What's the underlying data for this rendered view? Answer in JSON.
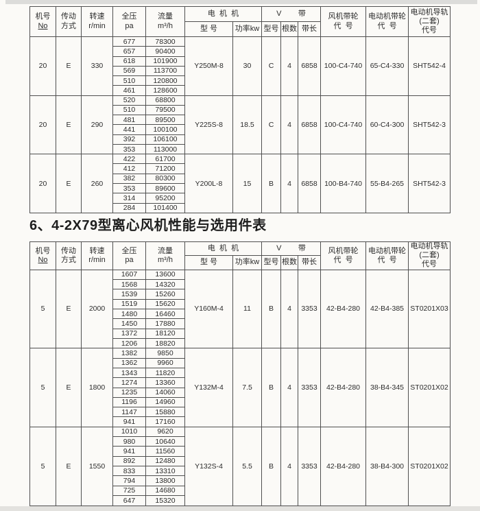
{
  "section_title": "6、4-2X79型离心风机性能与选用件表",
  "header": {
    "cols": [
      {
        "line1": "机号",
        "line2": "No"
      },
      {
        "line1": "传动",
        "line2": "方式"
      },
      {
        "line1": "转速",
        "line2": "r/min"
      },
      {
        "line1": "全压",
        "line2": "pa"
      },
      {
        "line1": "流量",
        "line2": "m³/h"
      }
    ],
    "motor_group": "电  机  机",
    "motor_sub": [
      "型 号",
      "功率kw"
    ],
    "belt_group": "V        带",
    "belt_sub": [
      "型号",
      "根数",
      "带长"
    ],
    "fan_pulley_lines": [
      "风机带轮",
      "代  号"
    ],
    "motor_pulley_lines": [
      "电动机带轮",
      "代  号"
    ],
    "rail_lines": [
      "电动机导轨",
      "(二套)",
      "代号"
    ]
  },
  "table1": {
    "blocks": [
      {
        "no": "20",
        "drive": "E",
        "speed": "330",
        "rows": [
          [
            "677",
            "78300"
          ],
          [
            "657",
            "90400"
          ],
          [
            "618",
            "101900"
          ],
          [
            "569",
            "113700"
          ],
          [
            "510",
            "120800"
          ],
          [
            "461",
            "128600"
          ]
        ],
        "motor": "Y250M-8",
        "power": "30",
        "belt_type": "C",
        "belt_count": "4",
        "belt_length": "6858",
        "fan_pulley": "100-C4-740",
        "motor_pulley": "65-C4-330",
        "rail": "SHT542-4"
      },
      {
        "no": "20",
        "drive": "E",
        "speed": "290",
        "rows": [
          [
            "520",
            "68800"
          ],
          [
            "510",
            "79500"
          ],
          [
            "481",
            "89500"
          ],
          [
            "441",
            "100100"
          ],
          [
            "392",
            "106100"
          ],
          [
            "353",
            "113000"
          ]
        ],
        "motor": "Y225S-8",
        "power": "18.5",
        "belt_type": "C",
        "belt_count": "4",
        "belt_length": "6858",
        "fan_pulley": "100-C4-740",
        "motor_pulley": "60-C4-300",
        "rail": "SHT542-3"
      },
      {
        "no": "20",
        "drive": "E",
        "speed": "260",
        "rows": [
          [
            "422",
            "61700"
          ],
          [
            "412",
            "71200"
          ],
          [
            "382",
            "80300"
          ],
          [
            "353",
            "89600"
          ],
          [
            "314",
            "95200"
          ],
          [
            "284",
            "101400"
          ]
        ],
        "motor": "Y200L-8",
        "power": "15",
        "belt_type": "B",
        "belt_count": "4",
        "belt_length": "6858",
        "fan_pulley": "100-B4-740",
        "motor_pulley": "55-B4-265",
        "rail": "SHT542-3"
      }
    ]
  },
  "table2": {
    "blocks": [
      {
        "no": "5",
        "drive": "E",
        "speed": "2000",
        "rows": [
          [
            "1607",
            "13600"
          ],
          [
            "1568",
            "14320"
          ],
          [
            "1539",
            "15260"
          ],
          [
            "1519",
            "15620"
          ],
          [
            "1480",
            "16460"
          ],
          [
            "1450",
            "17880"
          ],
          [
            "1372",
            "18120"
          ],
          [
            "1206",
            "18820"
          ]
        ],
        "motor": "Y160M-4",
        "power": "11",
        "belt_type": "B",
        "belt_count": "4",
        "belt_length": "3353",
        "fan_pulley": "42-B4-280",
        "motor_pulley": "42-B4-385",
        "rail": "ST0201X03"
      },
      {
        "no": "5",
        "drive": "E",
        "speed": "1800",
        "rows": [
          [
            "1382",
            "9850"
          ],
          [
            "1362",
            "9960"
          ],
          [
            "1343",
            "11820"
          ],
          [
            "1274",
            "13360"
          ],
          [
            "1235",
            "14060"
          ],
          [
            "1196",
            "14960"
          ],
          [
            "1147",
            "15880"
          ],
          [
            "941",
            "17160"
          ]
        ],
        "motor": "Y132M-4",
        "power": "7.5",
        "belt_type": "B",
        "belt_count": "4",
        "belt_length": "3353",
        "fan_pulley": "42-B4-280",
        "motor_pulley": "38-B4-345",
        "rail": "ST0201X02"
      },
      {
        "no": "5",
        "drive": "E",
        "speed": "1550",
        "rows": [
          [
            "1010",
            "9620"
          ],
          [
            "980",
            "10640"
          ],
          [
            "941",
            "11560"
          ],
          [
            "892",
            "12480"
          ],
          [
            "833",
            "13310"
          ],
          [
            "794",
            "13800"
          ],
          [
            "725",
            "14680"
          ],
          [
            "647",
            "15320"
          ]
        ],
        "motor": "Y132S-4",
        "power": "5.5",
        "belt_type": "B",
        "belt_count": "4",
        "belt_length": "3353",
        "fan_pulley": "42-B4-280",
        "motor_pulley": "38-B4-300",
        "rail": "ST0201X02"
      }
    ]
  }
}
